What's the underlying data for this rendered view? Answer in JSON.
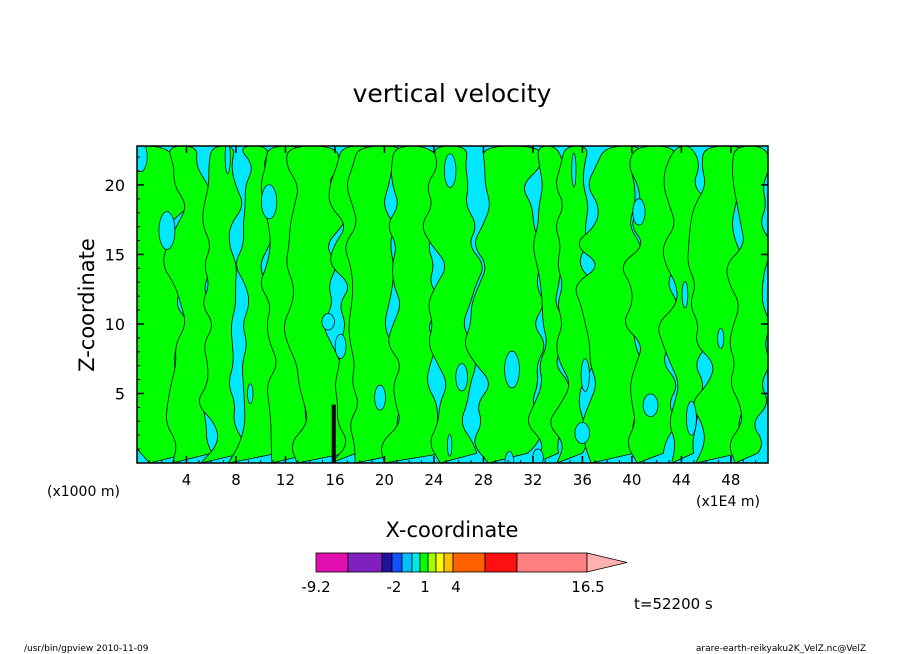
{
  "chart_data": {
    "type": "heatmap",
    "title": "vertical velocity",
    "xlabel": "X-coordinate",
    "ylabel": "Z-coordinate",
    "x_unit_left": "(x1000 m)",
    "x_unit_right": "(x1E4 m)",
    "xlim": [
      0,
      51
    ],
    "ylim": [
      0,
      22.8
    ],
    "x_ticks": [
      4,
      8,
      12,
      16,
      20,
      24,
      28,
      32,
      36,
      40,
      44,
      48
    ],
    "y_ticks": [
      5,
      10,
      15,
      20
    ],
    "time_label": "t=52200 s",
    "colorbar": {
      "levels": [
        -9.2,
        -2,
        1,
        4,
        16.5
      ],
      "labels": [
        "-9.2",
        "-2",
        "1",
        "4",
        "16.5"
      ],
      "colors": [
        "#e010b0",
        "#8020c0",
        "#2010a0",
        "#1050ff",
        "#00c0ff",
        "#00e8e8",
        "#00ff00",
        "#a0ff00",
        "#ffff00",
        "#ffc000",
        "#ff6000",
        "#ff1010",
        "#ff8080",
        "#ffb0b0"
      ]
    },
    "field_colors": {
      "negative": "#00e8ff",
      "positive": "#00ff00"
    }
  },
  "footer": {
    "left": "/usr/bin/gpview  2010-11-09",
    "right": "arare-earth-reikyaku2K_VelZ.nc@VelZ"
  }
}
